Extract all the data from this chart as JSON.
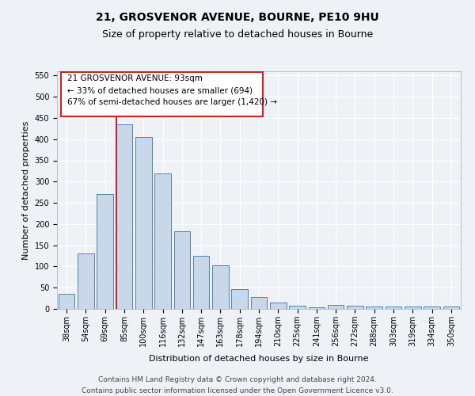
{
  "title_line1": "21, GROSVENOR AVENUE, BOURNE, PE10 9HU",
  "title_line2": "Size of property relative to detached houses in Bourne",
  "xlabel": "Distribution of detached houses by size in Bourne",
  "ylabel": "Number of detached properties",
  "categories": [
    "38sqm",
    "54sqm",
    "69sqm",
    "85sqm",
    "100sqm",
    "116sqm",
    "132sqm",
    "147sqm",
    "163sqm",
    "178sqm",
    "194sqm",
    "210sqm",
    "225sqm",
    "241sqm",
    "256sqm",
    "272sqm",
    "288sqm",
    "303sqm",
    "319sqm",
    "334sqm",
    "350sqm"
  ],
  "values": [
    35,
    130,
    270,
    435,
    405,
    320,
    183,
    125,
    103,
    46,
    28,
    15,
    7,
    3,
    10,
    8,
    5,
    5,
    5,
    5,
    5
  ],
  "bar_color": "#c8d8e8",
  "bar_edge_color": "#5080b0",
  "vline_x_index": 3,
  "vline_color": "#cc2222",
  "annotation_box_text": "21 GROSVENOR AVENUE: 93sqm\n← 33% of detached houses are smaller (694)\n67% of semi-detached houses are larger (1,420) →",
  "box_edge_color": "#cc2222",
  "ylim": [
    0,
    560
  ],
  "yticks": [
    0,
    50,
    100,
    150,
    200,
    250,
    300,
    350,
    400,
    450,
    500,
    550
  ],
  "footer_line1": "Contains HM Land Registry data © Crown copyright and database right 2024.",
  "footer_line2": "Contains public sector information licensed under the Open Government Licence v3.0.",
  "bg_color": "#eef2f7",
  "plot_bg_color": "#eef2f7",
  "grid_color": "#ffffff",
  "title_fontsize": 10,
  "subtitle_fontsize": 9,
  "axis_label_fontsize": 8,
  "tick_fontsize": 7,
  "annotation_fontsize": 7.5,
  "footer_fontsize": 6.5
}
